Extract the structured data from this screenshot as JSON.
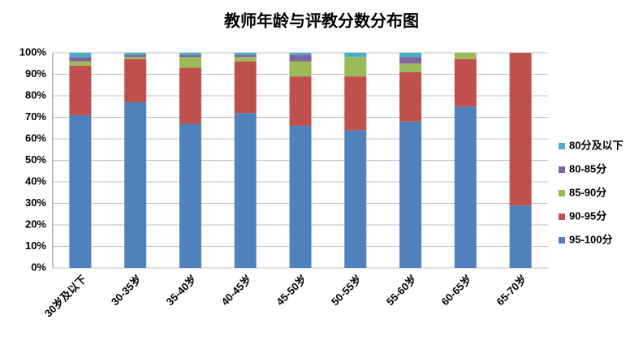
{
  "chart_data": {
    "type": "stacked_bar",
    "title": "教师年龄与评教分数分布图",
    "categories": [
      "30岁及以下",
      "30-35岁",
      "35-40岁",
      "40-45岁",
      "45-50岁",
      "50-55岁",
      "55-60岁",
      "60-65岁",
      "65-70岁"
    ],
    "series": [
      {
        "name": "95-100分",
        "color": "#4f81bd",
        "values": [
          71,
          77,
          67,
          72,
          66,
          64,
          68,
          75,
          29
        ]
      },
      {
        "name": "90-95分",
        "color": "#c0504d",
        "values": [
          23,
          20,
          26,
          24,
          23,
          25,
          23,
          22,
          71
        ]
      },
      {
        "name": "85-90分",
        "color": "#9bbb59",
        "values": [
          2,
          1,
          5,
          2,
          7,
          9,
          4,
          3,
          0
        ]
      },
      {
        "name": "80-85分",
        "color": "#8064a2",
        "values": [
          2,
          1,
          1,
          1,
          3,
          0,
          3,
          0,
          0
        ]
      },
      {
        "name": "80分及以下",
        "color": "#4bacc6",
        "values": [
          2,
          1,
          1,
          1,
          1,
          2,
          2,
          0,
          0
        ]
      }
    ],
    "ylim": [
      0,
      100
    ],
    "yticks": [
      {
        "value": 0,
        "label": "0%"
      },
      {
        "value": 10,
        "label": "10%"
      },
      {
        "value": 20,
        "label": "20%"
      },
      {
        "value": 30,
        "label": "30%"
      },
      {
        "value": 40,
        "label": "40%"
      },
      {
        "value": 50,
        "label": "50%"
      },
      {
        "value": 60,
        "label": "60%"
      },
      {
        "value": 70,
        "label": "70%"
      },
      {
        "value": 80,
        "label": "80%"
      },
      {
        "value": 90,
        "label": "90%"
      },
      {
        "value": 100,
        "label": "100%"
      }
    ],
    "grid": true,
    "legend": "right"
  }
}
